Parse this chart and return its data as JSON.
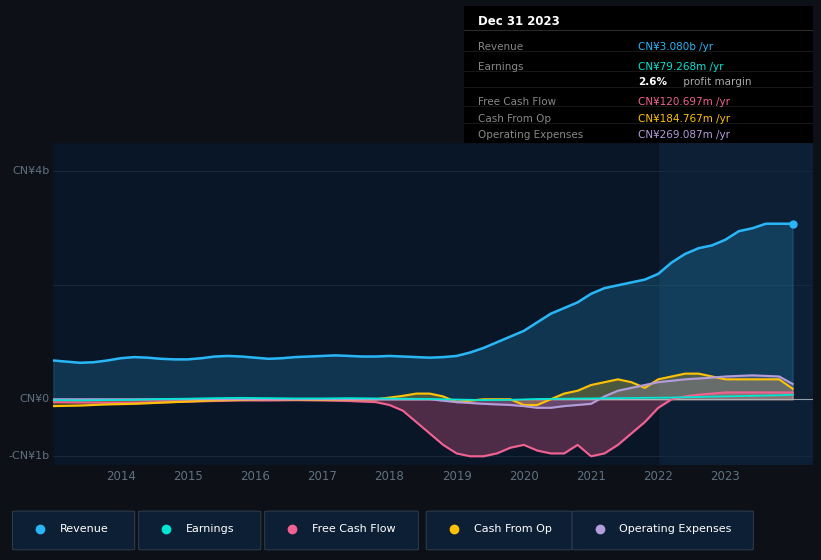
{
  "bg_color": "#0d1117",
  "plot_bg_color": "#0d1f35",
  "dark_bg_color": "#070e1a",
  "xlim": [
    2013.0,
    2024.3
  ],
  "ylim": [
    -1150000000.0,
    4500000000.0
  ],
  "revenue_color": "#29b6f6",
  "earnings_color": "#00e5d4",
  "fcf_color": "#f06292",
  "cashfromop_color": "#ffc107",
  "opex_color": "#b39ddb",
  "zero_line_color": "#b0bec5",
  "grid_color": "#1a2d3d",
  "tick_color": "#607080",
  "label_color": "#607080",
  "legend_items": [
    "Revenue",
    "Earnings",
    "Free Cash Flow",
    "Cash From Op",
    "Operating Expenses"
  ],
  "legend_colors": [
    "#29b6f6",
    "#00e5d4",
    "#f06292",
    "#ffc107",
    "#b39ddb"
  ],
  "xtick_positions": [
    2014,
    2015,
    2016,
    2017,
    2018,
    2019,
    2020,
    2021,
    2022,
    2023
  ],
  "xtick_labels": [
    "2014",
    "2015",
    "2016",
    "2017",
    "2018",
    "2019",
    "2020",
    "2021",
    "2022",
    "2023"
  ],
  "revenue": {
    "x": [
      2013.0,
      2013.2,
      2013.4,
      2013.6,
      2013.8,
      2014.0,
      2014.2,
      2014.4,
      2014.6,
      2014.8,
      2015.0,
      2015.2,
      2015.4,
      2015.6,
      2015.8,
      2016.0,
      2016.2,
      2016.4,
      2016.6,
      2016.8,
      2017.0,
      2017.2,
      2017.4,
      2017.6,
      2017.8,
      2018.0,
      2018.2,
      2018.4,
      2018.6,
      2018.8,
      2019.0,
      2019.2,
      2019.4,
      2019.6,
      2019.8,
      2020.0,
      2020.2,
      2020.4,
      2020.6,
      2020.8,
      2021.0,
      2021.2,
      2021.4,
      2021.6,
      2021.8,
      2022.0,
      2022.2,
      2022.4,
      2022.6,
      2022.8,
      2023.0,
      2023.2,
      2023.4,
      2023.6,
      2023.8,
      2024.0
    ],
    "y": [
      680000000.0,
      660000000.0,
      640000000.0,
      650000000.0,
      680000000.0,
      720000000.0,
      740000000.0,
      730000000.0,
      710000000.0,
      700000000.0,
      700000000.0,
      720000000.0,
      750000000.0,
      760000000.0,
      750000000.0,
      730000000.0,
      710000000.0,
      720000000.0,
      740000000.0,
      750000000.0,
      760000000.0,
      770000000.0,
      760000000.0,
      750000000.0,
      750000000.0,
      760000000.0,
      750000000.0,
      740000000.0,
      730000000.0,
      740000000.0,
      760000000.0,
      820000000.0,
      900000000.0,
      1000000000.0,
      1100000000.0,
      1200000000.0,
      1350000000.0,
      1500000000.0,
      1600000000.0,
      1700000000.0,
      1850000000.0,
      1950000000.0,
      2000000000.0,
      2050000000.0,
      2100000000.0,
      2200000000.0,
      2400000000.0,
      2550000000.0,
      2650000000.0,
      2700000000.0,
      2800000000.0,
      2950000000.0,
      3000000000.0,
      3080000000.0,
      3080000000.0,
      3080000000.0
    ]
  },
  "earnings": {
    "x": [
      2013.0,
      2013.4,
      2013.8,
      2014.2,
      2014.6,
      2015.0,
      2015.4,
      2015.8,
      2016.2,
      2016.6,
      2017.0,
      2017.4,
      2017.8,
      2018.2,
      2018.6,
      2019.0,
      2019.4,
      2019.8,
      2020.2,
      2020.6,
      2021.0,
      2021.4,
      2021.8,
      2022.2,
      2022.6,
      2023.0,
      2023.4,
      2023.8,
      2024.0
    ],
    "y": [
      -15000000.0,
      -20000000.0,
      -15000000.0,
      -10000000.0,
      5000000.0,
      10000000.0,
      20000000.0,
      25000000.0,
      20000000.0,
      15000000.0,
      15000000.0,
      20000000.0,
      15000000.0,
      10000000.0,
      5000000.0,
      -5000000.0,
      -15000000.0,
      -10000000.0,
      5000000.0,
      10000000.0,
      15000000.0,
      20000000.0,
      25000000.0,
      30000000.0,
      40000000.0,
      50000000.0,
      60000000.0,
      70000000.0,
      79000000.0
    ]
  },
  "fcf": {
    "x": [
      2013.0,
      2013.4,
      2013.8,
      2014.2,
      2014.6,
      2015.0,
      2015.4,
      2015.8,
      2016.2,
      2016.6,
      2017.0,
      2017.4,
      2017.8,
      2018.0,
      2018.2,
      2018.4,
      2018.6,
      2018.8,
      2019.0,
      2019.2,
      2019.4,
      2019.6,
      2019.8,
      2020.0,
      2020.2,
      2020.4,
      2020.6,
      2020.8,
      2021.0,
      2021.2,
      2021.4,
      2021.6,
      2021.8,
      2022.0,
      2022.2,
      2022.4,
      2022.6,
      2022.8,
      2023.0,
      2023.4,
      2023.8,
      2024.0
    ],
    "y": [
      -50000000.0,
      -55000000.0,
      -60000000.0,
      -60000000.0,
      -50000000.0,
      -40000000.0,
      -30000000.0,
      -20000000.0,
      -20000000.0,
      -15000000.0,
      -20000000.0,
      -30000000.0,
      -50000000.0,
      -100000000.0,
      -200000000.0,
      -400000000.0,
      -600000000.0,
      -800000000.0,
      -950000000.0,
      -1000000000.0,
      -1000000000.0,
      -950000000.0,
      -850000000.0,
      -800000000.0,
      -900000000.0,
      -950000000.0,
      -950000000.0,
      -800000000.0,
      -1000000000.0,
      -950000000.0,
      -800000000.0,
      -600000000.0,
      -400000000.0,
      -150000000.0,
      0,
      50000000.0,
      80000000.0,
      100000000.0,
      120000000.0,
      120000000.0,
      120000000.0,
      120000000.0
    ]
  },
  "cashfromop": {
    "x": [
      2013.0,
      2013.4,
      2013.8,
      2014.2,
      2014.6,
      2015.0,
      2015.4,
      2015.8,
      2016.2,
      2016.6,
      2017.0,
      2017.4,
      2017.8,
      2018.0,
      2018.2,
      2018.4,
      2018.6,
      2018.8,
      2019.0,
      2019.4,
      2019.8,
      2020.0,
      2020.2,
      2020.4,
      2020.6,
      2020.8,
      2021.0,
      2021.2,
      2021.4,
      2021.6,
      2021.8,
      2022.0,
      2022.2,
      2022.4,
      2022.6,
      2022.8,
      2023.0,
      2023.4,
      2023.8,
      2024.0
    ],
    "y": [
      -120000000.0,
      -110000000.0,
      -90000000.0,
      -80000000.0,
      -60000000.0,
      -40000000.0,
      -20000000.0,
      -10000000.0,
      0,
      -5000000.0,
      -10000000.0,
      -5000000.0,
      0,
      30000000.0,
      60000000.0,
      100000000.0,
      100000000.0,
      50000000.0,
      -50000000.0,
      0,
      0,
      -100000000.0,
      -100000000.0,
      0,
      100000000.0,
      150000000.0,
      250000000.0,
      300000000.0,
      350000000.0,
      300000000.0,
      200000000.0,
      350000000.0,
      400000000.0,
      450000000.0,
      450000000.0,
      400000000.0,
      350000000.0,
      350000000.0,
      350000000.0,
      185000000.0
    ]
  },
  "opex": {
    "x": [
      2013.0,
      2013.4,
      2013.8,
      2014.2,
      2014.6,
      2015.0,
      2015.4,
      2015.8,
      2016.2,
      2016.6,
      2017.0,
      2017.4,
      2017.8,
      2018.2,
      2018.6,
      2019.0,
      2019.4,
      2019.8,
      2020.0,
      2020.2,
      2020.4,
      2020.6,
      2020.8,
      2021.0,
      2021.2,
      2021.4,
      2021.6,
      2021.8,
      2022.0,
      2022.4,
      2022.8,
      2023.0,
      2023.4,
      2023.8,
      2024.0
    ],
    "y": [
      0,
      0,
      0,
      0,
      0,
      0,
      0,
      0,
      0,
      0,
      0,
      0,
      0,
      0,
      0,
      -50000000.0,
      -80000000.0,
      -100000000.0,
      -120000000.0,
      -150000000.0,
      -150000000.0,
      -120000000.0,
      -100000000.0,
      -80000000.0,
      50000000.0,
      150000000.0,
      200000000.0,
      250000000.0,
      300000000.0,
      350000000.0,
      380000000.0,
      400000000.0,
      420000000.0,
      400000000.0,
      269000000.0
    ]
  }
}
